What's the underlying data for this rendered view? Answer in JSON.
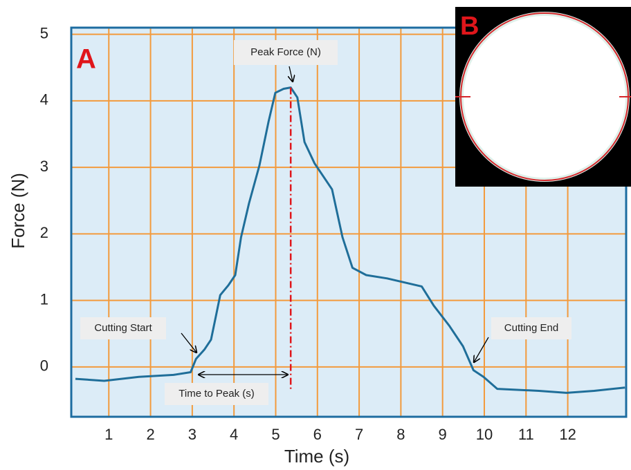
{
  "chart_data": {
    "type": "line",
    "panel_label": "A",
    "x_label": "Time (s)",
    "y_label": "Force (N)",
    "xlim": [
      0.1,
      13.4
    ],
    "ylim": [
      -0.75,
      5.1
    ],
    "xticks": [
      1,
      2,
      3,
      4,
      5,
      6,
      7,
      8,
      9,
      10,
      11,
      12
    ],
    "yticks": [
      0,
      1,
      2,
      3,
      4,
      5
    ],
    "grid": true,
    "color": "#1f6e99",
    "x": [
      0.2,
      0.89,
      1.72,
      2.55,
      2.96,
      3.09,
      3.29,
      3.45,
      3.57,
      3.67,
      3.87,
      4.03,
      4.17,
      4.36,
      4.61,
      4.83,
      4.99,
      5.19,
      5.36,
      5.52,
      5.69,
      5.93,
      6.35,
      6.6,
      6.84,
      7.17,
      7.67,
      8.5,
      8.79,
      9.16,
      9.49,
      9.74,
      9.98,
      10.31,
      11.31,
      11.97,
      12.63,
      13.37
    ],
    "values": [
      -0.18,
      -0.21,
      -0.15,
      -0.12,
      -0.08,
      0.12,
      0.26,
      0.41,
      0.77,
      1.08,
      1.23,
      1.38,
      1.95,
      2.46,
      3.03,
      3.69,
      4.12,
      4.18,
      4.2,
      4.05,
      3.38,
      3.06,
      2.67,
      1.95,
      1.49,
      1.38,
      1.33,
      1.21,
      0.92,
      0.62,
      0.31,
      -0.05,
      -0.15,
      -0.33,
      -0.36,
      -0.39,
      -0.36,
      -0.31
    ],
    "annotations": {
      "peak": "Peak Force (N)",
      "start": "Cutting Start",
      "end": "Cutting End",
      "time_to_peak": "Time to Peak (s)"
    },
    "inset_label": "B"
  }
}
